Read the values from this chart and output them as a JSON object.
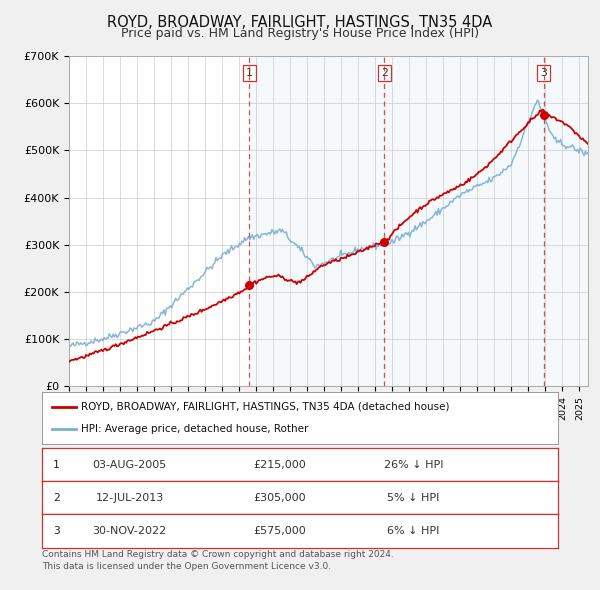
{
  "title": "ROYD, BROADWAY, FAIRLIGHT, HASTINGS, TN35 4DA",
  "subtitle": "Price paid vs. HM Land Registry's House Price Index (HPI)",
  "ylim": [
    0,
    700000
  ],
  "yticks": [
    0,
    100000,
    200000,
    300000,
    400000,
    500000,
    600000,
    700000
  ],
  "ytick_labels": [
    "£0",
    "£100K",
    "£200K",
    "£300K",
    "£400K",
    "£500K",
    "£600K",
    "£700K"
  ],
  "title_fontsize": 10.5,
  "subtitle_fontsize": 9,
  "sale_color": "#cc0000",
  "hpi_color": "#7aafd4",
  "sale_label": "ROYD, BROADWAY, FAIRLIGHT, HASTINGS, TN35 4DA (detached house)",
  "hpi_label": "HPI: Average price, detached house, Rother",
  "transactions": [
    {
      "num": 1,
      "date": "03-AUG-2005",
      "date_x": 2005.58,
      "price": 215000,
      "pct": "26%",
      "dir": "↓"
    },
    {
      "num": 2,
      "date": "12-JUL-2013",
      "date_x": 2013.53,
      "price": 305000,
      "pct": "5%",
      "dir": "↓"
    },
    {
      "num": 3,
      "date": "30-NOV-2022",
      "date_x": 2022.91,
      "price": 575000,
      "pct": "6%",
      "dir": "↓"
    }
  ],
  "footer": "Contains HM Land Registry data © Crown copyright and database right 2024.\nThis data is licensed under the Open Government Licence v3.0.",
  "background_color": "#f0f0f0",
  "plot_bg_color": "#ffffff",
  "grid_color": "#cccccc",
  "xmin": 1995,
  "xmax": 2025.5
}
